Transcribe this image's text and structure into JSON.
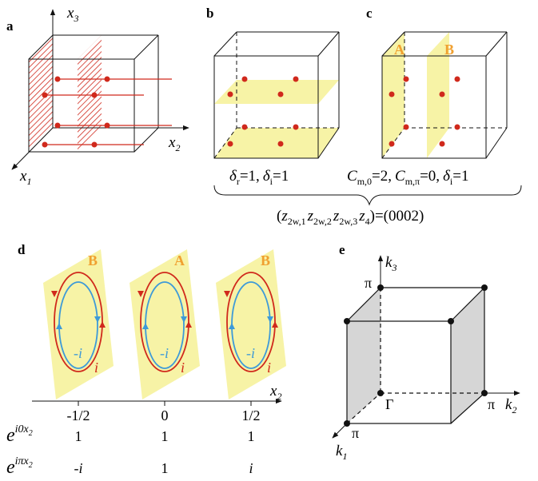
{
  "colors": {
    "red": "#d0291c",
    "plane_yellow": "#f7f3a6",
    "orange": "#f0a030",
    "blue": "#3d9ad8",
    "gray_face": "#d6d6d6",
    "black": "#111111"
  },
  "panel_a": {
    "letter": "a",
    "axis_x3": "x",
    "axis_x3_sub": "3",
    "axis_x2": "x",
    "axis_x2_sub": "2",
    "axis_x1": "x",
    "axis_x1_sub": "1"
  },
  "panel_b": {
    "letter": "b",
    "delta_r_sym": "δ",
    "delta_r_sub": "r",
    "delta_r_val": "=1,",
    "delta_i_sym": "δ",
    "delta_i_sub": "i",
    "delta_i_val": "=1"
  },
  "panel_c": {
    "letter": "c",
    "plane_A": "A",
    "plane_B": "B",
    "c_m0_sym": "C",
    "c_m0_sub": "m,0",
    "c_m0_val": "=2,",
    "c_mpi_sym": "C",
    "c_mpi_sub": "m,π",
    "c_mpi_val": "=0,",
    "delta_i_sym": "δ",
    "delta_i_sub": "i",
    "delta_i_val": "=1"
  },
  "z2_invariant": {
    "open": "(",
    "z": "z",
    "sub1": "2w,1",
    "sub2": "2w,2",
    "sub3": "2w,3",
    "sub4": "4",
    "value": ")=(0002)"
  },
  "panel_d": {
    "letter": "d",
    "planes": [
      "B",
      "A",
      "B"
    ],
    "loop_label_red": "i",
    "loop_label_blue": "-i",
    "axis_label": "x",
    "axis_label_sub": "2",
    "ticks": [
      "-1/2",
      "0",
      "1/2"
    ],
    "row1_label_base": "e",
    "row1_label_exp": "i0x",
    "row1_label_exp_sub": "2",
    "row1_values": [
      "1",
      "1",
      "1"
    ],
    "row2_label_base": "e",
    "row2_label_exp": "iπx",
    "row2_label_exp_sub": "2",
    "row2_values": [
      "-i",
      "1",
      "i"
    ]
  },
  "panel_e": {
    "letter": "e",
    "axis_k3": "k",
    "axis_k3_sub": "3",
    "axis_k2": "k",
    "axis_k2_sub": "2",
    "axis_k1": "k",
    "axis_k1_sub": "1",
    "pi_k3": "π",
    "pi_k2": "π",
    "pi_k1": "π",
    "gamma": "Γ"
  }
}
